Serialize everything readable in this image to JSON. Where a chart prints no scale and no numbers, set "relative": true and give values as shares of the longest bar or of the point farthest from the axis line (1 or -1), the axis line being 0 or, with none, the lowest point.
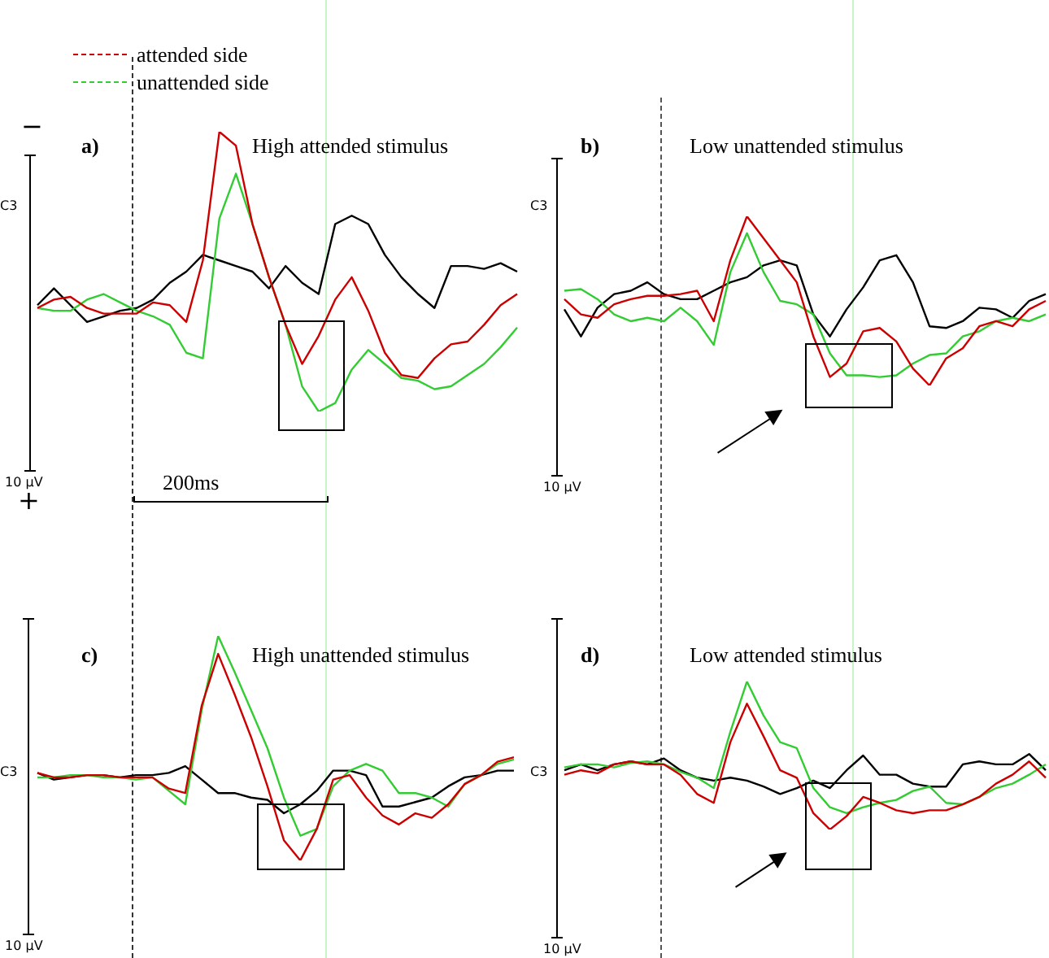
{
  "chart_data": [
    {
      "type": "line",
      "title": "High attended stimulus",
      "relative": true,
      "legend": "top left",
      "marker": "none",
      "line_style": "solid",
      "categories": [
        null,
        null,
        null,
        null,
        null,
        null,
        null,
        null,
        null,
        null,
        null,
        null,
        null,
        null,
        null,
        null,
        null,
        null,
        null,
        null,
        null,
        null,
        null,
        null,
        null,
        null,
        null,
        null,
        null,
        null
      ],
      "series": [
        {
          "name": "attended side",
          "color": "#cc0000",
          "values": [
            0.37,
            0.4,
            0.41,
            0.37,
            0.35,
            0.35,
            0.35,
            0.39,
            0.38,
            0.32,
            0.54,
            1.0,
            0.95,
            0.67,
            0.48,
            0.31,
            0.17,
            0.27,
            0.4,
            0.48,
            0.36,
            0.21,
            0.13,
            0.12,
            0.19,
            0.24,
            0.25,
            0.31,
            0.38,
            0.42
          ]
        },
        {
          "name": "unattended side",
          "color": "#33cc33",
          "values": [
            0.37,
            0.36,
            0.36,
            0.4,
            0.42,
            0.39,
            0.36,
            0.34,
            0.31,
            0.21,
            0.19,
            0.69,
            0.85,
            0.67,
            0.48,
            0.31,
            0.09,
            0.0,
            0.03,
            0.15,
            0.22,
            0.17,
            0.12,
            0.11,
            0.08,
            0.09,
            0.13,
            0.17,
            0.23,
            0.3
          ]
        },
        {
          "color": "#000000",
          "values": [
            0.38,
            0.44,
            0.38,
            0.32,
            0.34,
            0.36,
            0.37,
            0.4,
            0.46,
            0.5,
            0.56,
            0.54,
            0.52,
            0.5,
            0.44,
            0.52,
            0.46,
            0.42,
            0.67,
            0.7,
            0.67,
            0.56,
            0.48,
            0.42,
            0.37,
            0.52,
            0.52,
            0.51,
            0.53,
            0.5
          ]
        }
      ],
      "annotations": [
        "a)",
        "C3",
        "10 µV",
        "−",
        "+",
        "200ms"
      ]
    },
    {
      "type": "line",
      "title": "Low unattended stimulus",
      "relative": true,
      "marker": "none",
      "line_style": "solid",
      "categories": [
        null,
        null,
        null,
        null,
        null,
        null,
        null,
        null,
        null,
        null,
        null,
        null,
        null,
        null,
        null,
        null,
        null,
        null,
        null,
        null,
        null,
        null,
        null,
        null,
        null,
        null,
        null,
        null,
        null,
        null
      ],
      "series": [
        {
          "color": "#cc0000",
          "values": [
            0.51,
            0.42,
            0.4,
            0.48,
            0.51,
            0.53,
            0.53,
            0.54,
            0.56,
            0.38,
            0.74,
            1.0,
            0.87,
            0.74,
            0.61,
            0.29,
            0.05,
            0.13,
            0.32,
            0.34,
            0.26,
            0.1,
            0.0,
            0.16,
            0.22,
            0.35,
            0.38,
            0.35,
            0.45,
            0.5
          ]
        },
        {
          "color": "#33cc33",
          "values": [
            0.56,
            0.57,
            0.51,
            0.42,
            0.38,
            0.4,
            0.38,
            0.46,
            0.38,
            0.24,
            0.67,
            0.9,
            0.67,
            0.5,
            0.48,
            0.42,
            0.19,
            0.06,
            0.06,
            0.05,
            0.06,
            0.13,
            0.18,
            0.19,
            0.29,
            0.32,
            0.38,
            0.4,
            0.38,
            0.42
          ]
        },
        {
          "color": "#000000",
          "values": [
            0.45,
            0.29,
            0.46,
            0.54,
            0.56,
            0.61,
            0.54,
            0.51,
            0.51,
            0.56,
            0.61,
            0.64,
            0.71,
            0.74,
            0.71,
            0.42,
            0.29,
            0.45,
            0.58,
            0.74,
            0.77,
            0.61,
            0.35,
            0.34,
            0.38,
            0.46,
            0.45,
            0.4,
            0.5,
            0.54
          ]
        }
      ],
      "annotations": [
        "b)",
        "C3",
        "10 µV"
      ]
    },
    {
      "type": "line",
      "title": "High unattended stimulus",
      "relative": true,
      "marker": "none",
      "line_style": "solid",
      "categories": [
        null,
        null,
        null,
        null,
        null,
        null,
        null,
        null,
        null,
        null,
        null,
        null,
        null,
        null,
        null,
        null,
        null,
        null,
        null,
        null,
        null,
        null,
        null,
        null,
        null,
        null,
        null,
        null,
        null,
        null
      ],
      "series": [
        {
          "color": "#cc0000",
          "values": [
            0.39,
            0.37,
            0.37,
            0.38,
            0.38,
            0.37,
            0.37,
            0.37,
            0.32,
            0.3,
            0.69,
            0.92,
            0.74,
            0.55,
            0.33,
            0.09,
            0.0,
            0.14,
            0.36,
            0.38,
            0.28,
            0.2,
            0.16,
            0.21,
            0.19,
            0.25,
            0.34,
            0.38,
            0.44,
            0.46
          ]
        },
        {
          "color": "#33cc33",
          "values": [
            0.37,
            0.37,
            0.38,
            0.38,
            0.37,
            0.37,
            0.36,
            0.37,
            0.31,
            0.25,
            0.67,
            1.0,
            0.84,
            0.67,
            0.5,
            0.28,
            0.11,
            0.14,
            0.33,
            0.4,
            0.43,
            0.4,
            0.3,
            0.3,
            0.28,
            0.24,
            0.34,
            0.38,
            0.43,
            0.45
          ]
        },
        {
          "color": "#000000",
          "values": [
            0.39,
            0.36,
            0.37,
            0.38,
            0.38,
            0.37,
            0.38,
            0.38,
            0.39,
            0.42,
            0.36,
            0.3,
            0.3,
            0.28,
            0.27,
            0.21,
            0.25,
            0.31,
            0.4,
            0.4,
            0.38,
            0.24,
            0.24,
            0.26,
            0.28,
            0.33,
            0.37,
            0.38,
            0.4,
            0.4
          ]
        }
      ],
      "annotations": [
        "c)",
        "C3",
        "10 µV"
      ]
    },
    {
      "type": "line",
      "title": "Low attended stimulus",
      "relative": true,
      "marker": "none",
      "line_style": "solid",
      "categories": [
        null,
        null,
        null,
        null,
        null,
        null,
        null,
        null,
        null,
        null,
        null,
        null,
        null,
        null,
        null,
        null,
        null,
        null,
        null,
        null,
        null,
        null,
        null,
        null,
        null,
        null,
        null,
        null,
        null,
        null
      ],
      "series": [
        {
          "color": "#cc0000",
          "values": [
            0.37,
            0.4,
            0.38,
            0.44,
            0.46,
            0.44,
            0.44,
            0.37,
            0.24,
            0.18,
            0.59,
            0.85,
            0.63,
            0.4,
            0.35,
            0.11,
            0.0,
            0.09,
            0.22,
            0.18,
            0.13,
            0.11,
            0.13,
            0.13,
            0.17,
            0.22,
            0.31,
            0.37,
            0.46,
            0.35
          ]
        },
        {
          "color": "#33cc33",
          "values": [
            0.42,
            0.44,
            0.44,
            0.42,
            0.45,
            0.46,
            0.44,
            0.39,
            0.35,
            0.28,
            0.66,
            1.0,
            0.77,
            0.59,
            0.55,
            0.28,
            0.15,
            0.11,
            0.15,
            0.18,
            0.2,
            0.26,
            0.29,
            0.18,
            0.17,
            0.22,
            0.28,
            0.31,
            0.37,
            0.44
          ]
        },
        {
          "color": "#000000",
          "values": [
            0.4,
            0.44,
            0.4,
            0.44,
            0.46,
            0.44,
            0.48,
            0.4,
            0.35,
            0.33,
            0.35,
            0.33,
            0.29,
            0.24,
            0.28,
            0.33,
            0.28,
            0.4,
            0.5,
            0.37,
            0.37,
            0.31,
            0.29,
            0.29,
            0.44,
            0.46,
            0.44,
            0.44,
            0.51,
            0.4
          ]
        }
      ],
      "annotations": [
        "d)",
        "C3",
        "10 µV"
      ]
    }
  ]
}
